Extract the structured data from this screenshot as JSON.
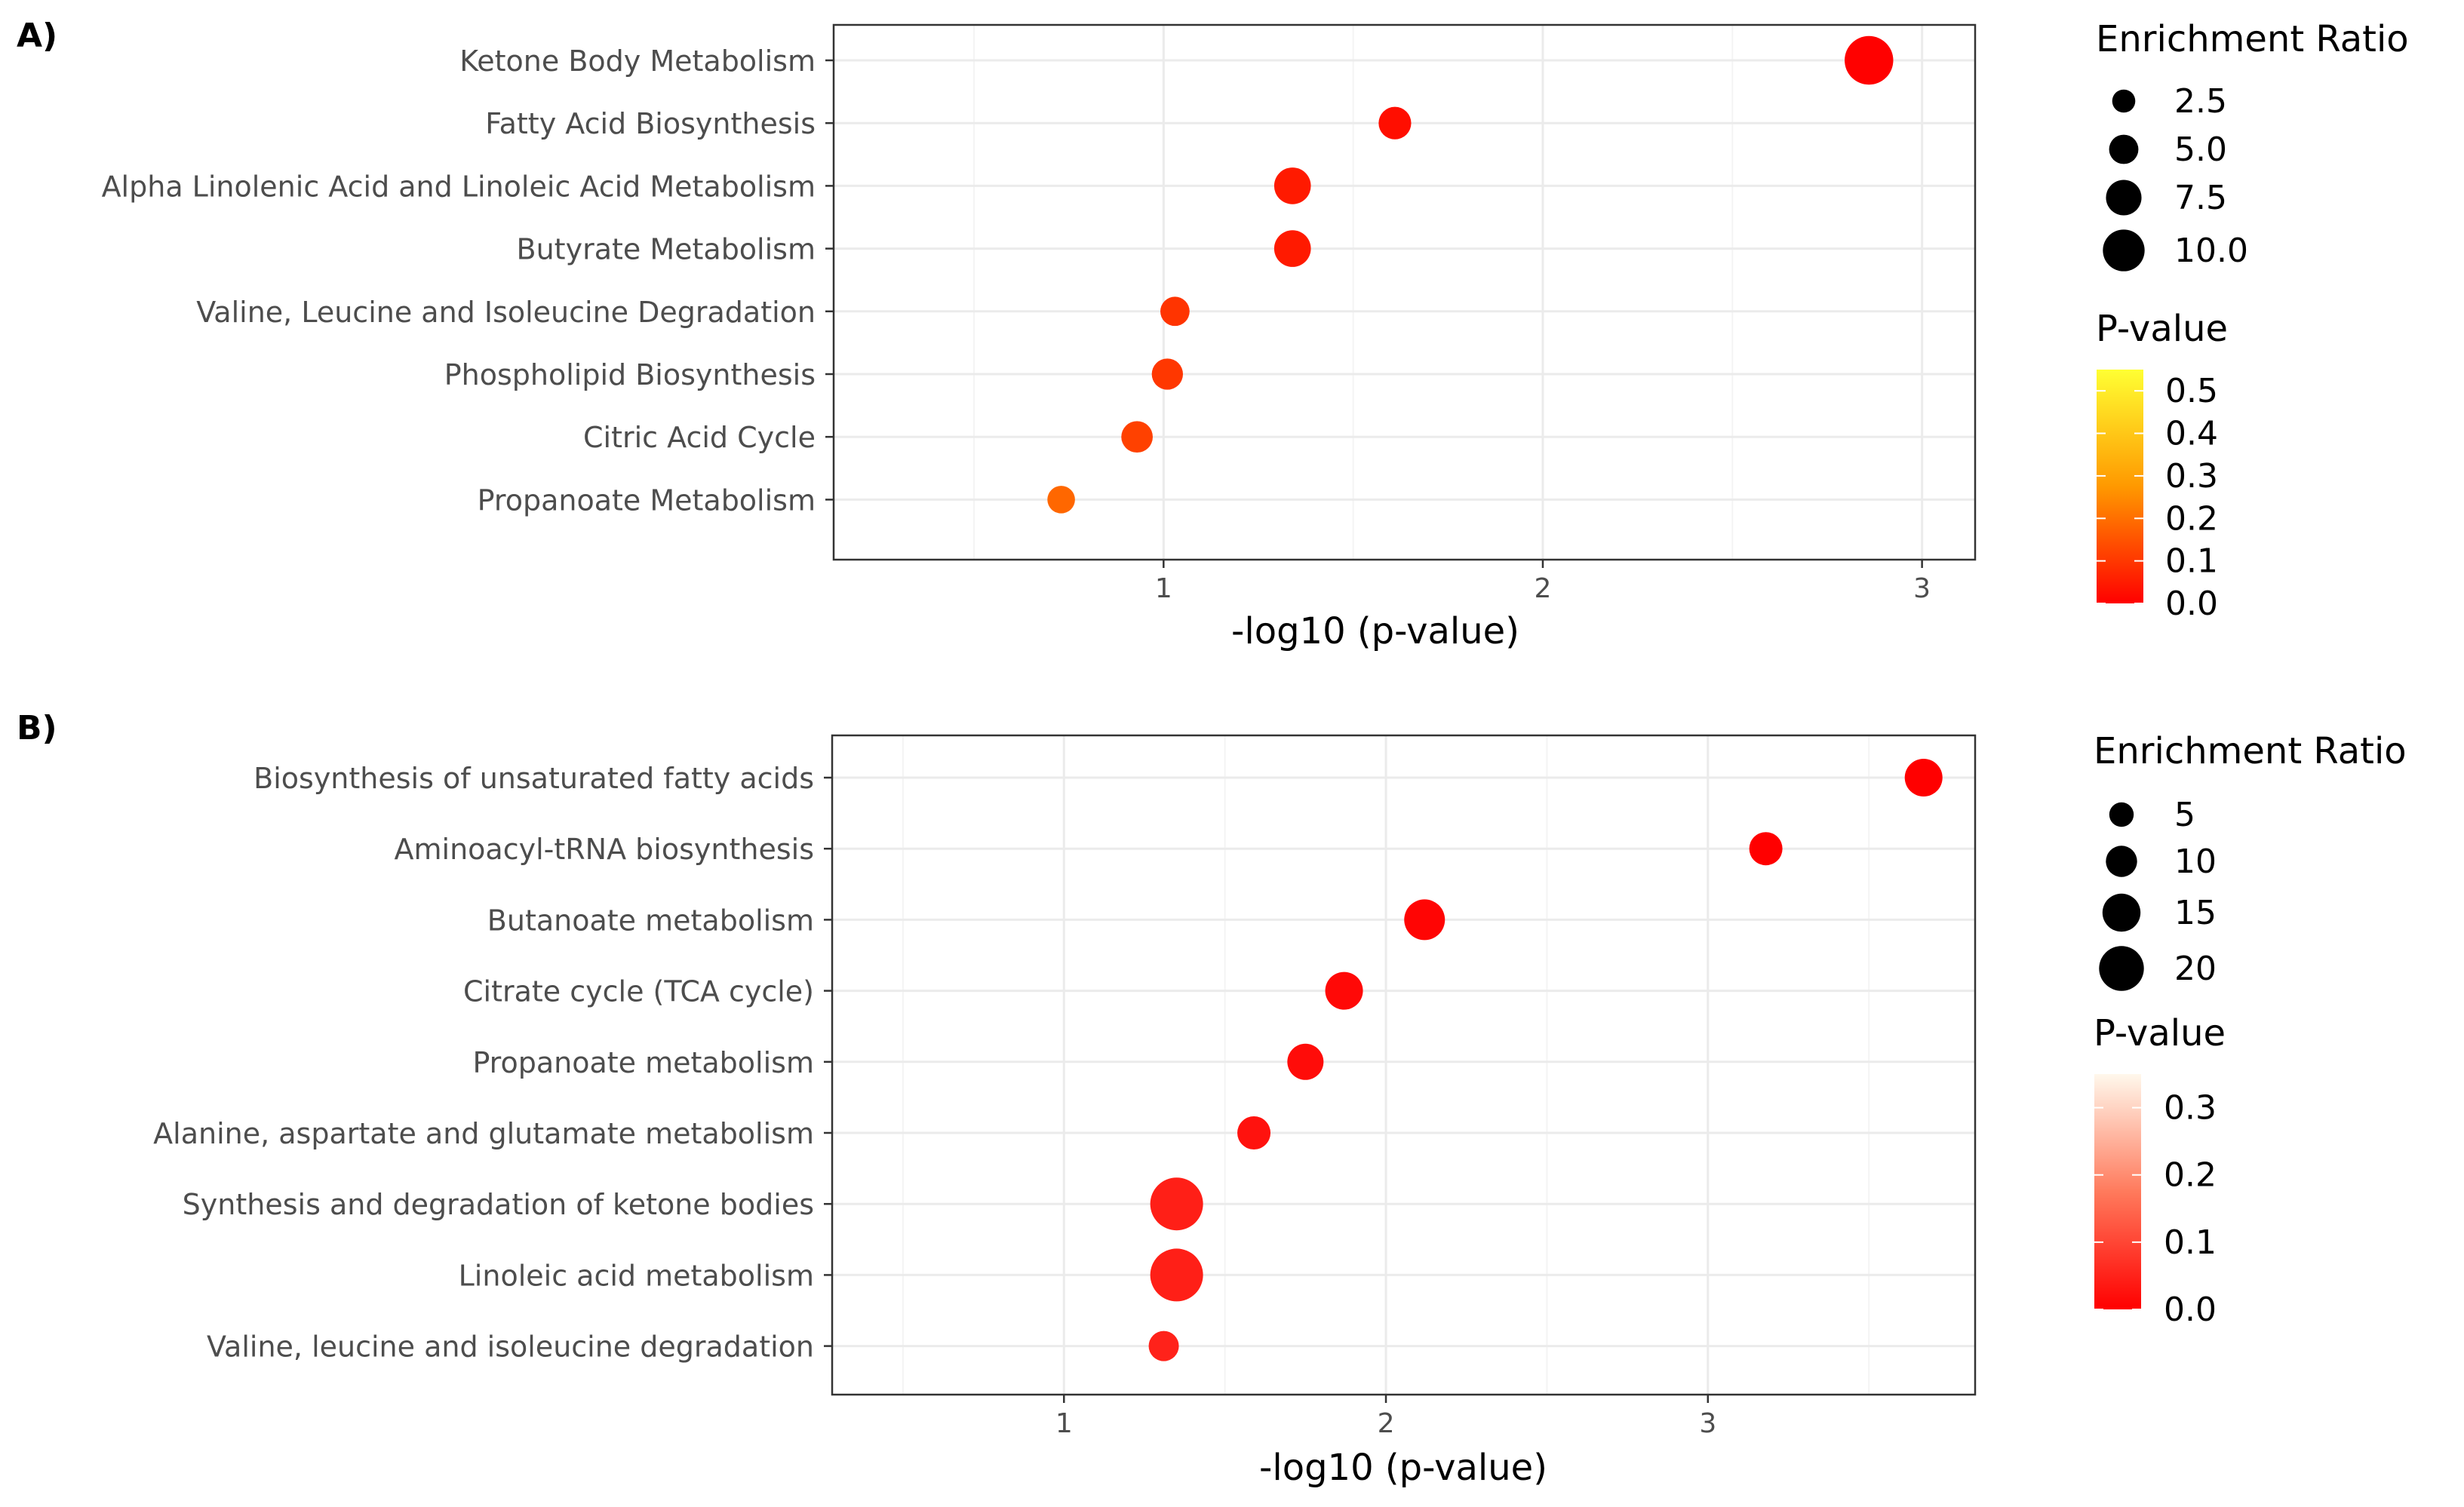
{
  "chart_data": [
    {
      "panel_label": "A)",
      "type": "scatter",
      "subtype": "dot-plot",
      "xlabel": "-log10 (p-value)",
      "ylabel": "",
      "xlim": [
        0.13,
        3.14
      ],
      "xticks": [
        1,
        2,
        3
      ],
      "xtick_labels": [
        "1",
        "2",
        "3"
      ],
      "grid": true,
      "legend_position": "right",
      "categories": [
        "Ketone Body Metabolism",
        "Fatty Acid Biosynthesis",
        "Alpha Linolenic Acid and Linoleic Acid Metabolism",
        "Butyrate Metabolism",
        "Valine, Leucine and Isoleucine Degradation",
        "Phospholipid Biosynthesis",
        "Citric Acid Cycle",
        "Propanoate Metabolism"
      ],
      "x": [
        2.86,
        1.61,
        1.34,
        1.34,
        1.03,
        1.01,
        0.93,
        0.73
      ],
      "enrichment_ratio": [
        10.8,
        5.0,
        6.5,
        6.5,
        3.8,
        4.5,
        4.6,
        3.2
      ],
      "p_value": [
        0.0014,
        0.025,
        0.046,
        0.046,
        0.093,
        0.098,
        0.117,
        0.186
      ],
      "size_legend": {
        "title": "Enrichment Ratio",
        "values": [
          2.5,
          5.0,
          7.5,
          10.0
        ],
        "labels": [
          "2.5",
          "5.0",
          "7.5",
          "10.0"
        ]
      },
      "color_legend": {
        "title": "P-value",
        "min": 0.0,
        "max": 0.55,
        "ticks": [
          0.5,
          0.4,
          0.3,
          0.2,
          0.1,
          0.0
        ],
        "tick_labels": [
          "0.5",
          "0.4",
          "0.3",
          "0.2",
          "0.1",
          "0.0"
        ],
        "color_low": "#ff0000",
        "color_mid": "#ff9900",
        "color_high": "#ffff33"
      }
    },
    {
      "panel_label": "B)",
      "type": "scatter",
      "subtype": "dot-plot",
      "xlabel": "-log10 (p-value)",
      "ylabel": "",
      "xlim": [
        0.28,
        3.83
      ],
      "xticks": [
        1,
        2,
        3
      ],
      "xtick_labels": [
        "1",
        "2",
        "3"
      ],
      "grid": true,
      "legend_position": "right",
      "categories": [
        "Biosynthesis of unsaturated fatty acids",
        "Aminoacyl-tRNA biosynthesis",
        "Butanoate metabolism",
        "Citrate cycle (TCA cycle)",
        "Propanoate metabolism",
        "Alanine, aspartate and glutamate metabolism",
        "Synthesis and degradation of ketone bodies",
        "Linoleic acid metabolism",
        "Valine, leucine and isoleucine degradation"
      ],
      "x": [
        3.67,
        3.18,
        2.12,
        1.87,
        1.75,
        1.59,
        1.35,
        1.35,
        1.31
      ],
      "enrichment_ratio": [
        12,
        9,
        14,
        12,
        11,
        9,
        22,
        22,
        7
      ],
      "p_value": [
        0.0002,
        0.0007,
        0.0076,
        0.0135,
        0.0178,
        0.0257,
        0.0447,
        0.0447,
        0.049
      ],
      "size_legend": {
        "title": "Enrichment Ratio",
        "values": [
          5,
          10,
          15,
          20
        ],
        "labels": [
          "5",
          "10",
          "15",
          "20"
        ]
      },
      "color_legend": {
        "title": "P-value",
        "min": 0.0,
        "max": 0.35,
        "ticks": [
          0.3,
          0.2,
          0.1,
          0.0
        ],
        "tick_labels": [
          "0.3",
          "0.2",
          "0.1",
          "0.0"
        ],
        "color_low": "#ff0000",
        "color_mid": "#ff7a5c",
        "color_high": "#fff8ec"
      }
    }
  ],
  "colors": {
    "panel_border": "#333333",
    "grid_major": "#ebebeb",
    "grid_minor": "#f4f4f4",
    "axis_text": "#4d4d4d",
    "title_text": "#000000"
  }
}
